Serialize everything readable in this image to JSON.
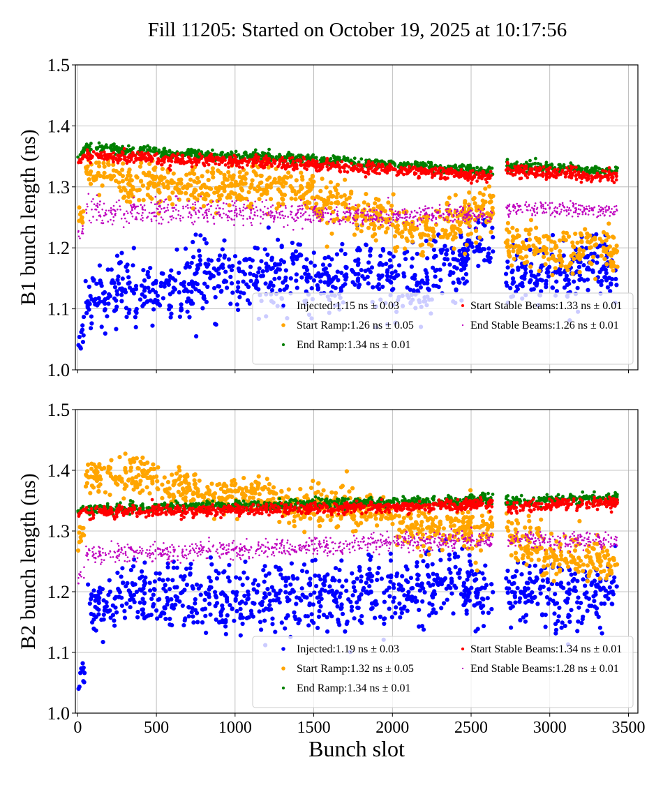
{
  "title": "Fill 11205: Started on October 19, 2025 at 10:17:56",
  "chart_data": [
    {
      "type": "scatter",
      "ylabel": "B1 bunch length (ns)",
      "xlabel": "",
      "xlim": [
        -15,
        3560
      ],
      "ylim": [
        1.0,
        1.5
      ],
      "xticks": [
        0,
        500,
        1000,
        1500,
        2000,
        2500,
        3000,
        3500
      ],
      "xtick_labels_visible": false,
      "yticks": [
        "1.0",
        "1.1",
        "1.2",
        "1.3",
        "1.4",
        "1.5"
      ],
      "grid": true,
      "legend_placement": "lower-right",
      "x_bin_centers": [
        15,
        125,
        375,
        625,
        875,
        1125,
        1375,
        1625,
        1875,
        2125,
        2375,
        2575,
        2825,
        3075,
        3325
      ],
      "series": [
        {
          "name": "Injected",
          "legend": "Injected:1.15 ns ± 0.03",
          "color": "#0000ff",
          "marker": "large",
          "mean": [
            1.04,
            1.12,
            1.13,
            1.14,
            1.15,
            1.15,
            1.15,
            1.15,
            1.15,
            1.14,
            1.17,
            1.2,
            1.15,
            1.16,
            1.17
          ],
          "spread": [
            0.03,
            0.025,
            0.03,
            0.03,
            0.03,
            0.03,
            0.03,
            0.03,
            0.03,
            0.03,
            0.03,
            0.025,
            0.03,
            0.03,
            0.025
          ]
        },
        {
          "name": "Start Ramp",
          "legend": "Start Ramp:1.26 ns ± 0.05",
          "color": "#ffa500",
          "marker": "large",
          "mean": [
            1.24,
            1.32,
            1.31,
            1.3,
            1.3,
            1.3,
            1.3,
            1.27,
            1.25,
            1.23,
            1.24,
            1.26,
            1.2,
            1.19,
            1.2
          ],
          "spread": [
            0.02,
            0.015,
            0.018,
            0.018,
            0.018,
            0.018,
            0.02,
            0.018,
            0.018,
            0.018,
            0.02,
            0.02,
            0.02,
            0.02,
            0.02
          ]
        },
        {
          "name": "End Ramp",
          "legend": "End Ramp:1.34 ns ± 0.01",
          "color": "#008000",
          "marker": "small",
          "mean": [
            1.35,
            1.362,
            1.36,
            1.355,
            1.352,
            1.35,
            1.347,
            1.343,
            1.338,
            1.335,
            1.33,
            1.326,
            1.333,
            1.33,
            1.326
          ],
          "spread": [
            0.004,
            0.004,
            0.004,
            0.004,
            0.004,
            0.004,
            0.004,
            0.004,
            0.004,
            0.004,
            0.004,
            0.004,
            0.004,
            0.004,
            0.004
          ]
        },
        {
          "name": "Start Stable Beams",
          "legend": "Start Stable Beams:1.33 ns ± 0.01",
          "color": "#ff0000",
          "marker": "small",
          "mean": [
            1.34,
            1.35,
            1.348,
            1.344,
            1.342,
            1.341,
            1.338,
            1.334,
            1.33,
            1.327,
            1.322,
            1.318,
            1.326,
            1.322,
            1.318
          ],
          "spread": [
            0.005,
            0.005,
            0.005,
            0.005,
            0.005,
            0.005,
            0.005,
            0.005,
            0.005,
            0.005,
            0.005,
            0.005,
            0.005,
            0.005,
            0.005
          ]
        },
        {
          "name": "End Stable Beams",
          "legend": "End Stable Beams:1.26 ns ± 0.01",
          "color": "#bf00bf",
          "marker": "tiny",
          "mean": [
            1.22,
            1.26,
            1.26,
            1.26,
            1.26,
            1.256,
            1.255,
            1.253,
            1.252,
            1.253,
            1.255,
            1.25,
            1.264,
            1.263,
            1.262
          ],
          "spread": [
            0.01,
            0.012,
            0.01,
            0.01,
            0.01,
            0.01,
            0.01,
            0.01,
            0.008,
            0.008,
            0.008,
            0.008,
            0.006,
            0.006,
            0.006
          ]
        }
      ]
    },
    {
      "type": "scatter",
      "ylabel": "B2 bunch length (ns)",
      "xlabel": "Bunch slot",
      "xlim": [
        -15,
        3560
      ],
      "ylim": [
        1.0,
        1.5
      ],
      "xticks": [
        0,
        500,
        1000,
        1500,
        2000,
        2500,
        3000,
        3500
      ],
      "xtick_labels_visible": true,
      "yticks": [
        "1.0",
        "1.1",
        "1.2",
        "1.3",
        "1.4",
        "1.5"
      ],
      "grid": true,
      "legend_placement": "lower-right",
      "x_bin_centers": [
        15,
        125,
        375,
        625,
        875,
        1125,
        1375,
        1625,
        1875,
        2125,
        2375,
        2575,
        2825,
        3075,
        3325
      ],
      "series": [
        {
          "name": "Injected",
          "legend": "Injected:1.19 ns ± 0.03",
          "color": "#0000ff",
          "marker": "large",
          "mean": [
            1.04,
            1.18,
            1.19,
            1.19,
            1.19,
            1.19,
            1.19,
            1.19,
            1.2,
            1.2,
            1.21,
            1.2,
            1.2,
            1.19,
            1.2
          ],
          "spread": [
            0.03,
            0.025,
            0.03,
            0.03,
            0.03,
            0.03,
            0.03,
            0.03,
            0.03,
            0.03,
            0.03,
            0.03,
            0.03,
            0.03,
            0.03
          ]
        },
        {
          "name": "Start Ramp",
          "legend": "Start Ramp:1.32 ns ± 0.05",
          "color": "#ffa500",
          "marker": "large",
          "mean": [
            1.29,
            1.39,
            1.39,
            1.37,
            1.36,
            1.36,
            1.34,
            1.34,
            1.33,
            1.31,
            1.31,
            1.3,
            1.28,
            1.26,
            1.25
          ],
          "spread": [
            0.02,
            0.015,
            0.018,
            0.018,
            0.016,
            0.016,
            0.016,
            0.016,
            0.016,
            0.018,
            0.018,
            0.02,
            0.02,
            0.02,
            0.02
          ]
        },
        {
          "name": "End Ramp",
          "legend": "End Ramp:1.34 ns ± 0.01",
          "color": "#008000",
          "marker": "small",
          "mean": [
            1.33,
            1.336,
            1.338,
            1.34,
            1.342,
            1.343,
            1.344,
            1.345,
            1.347,
            1.348,
            1.35,
            1.352,
            1.348,
            1.352,
            1.354
          ],
          "spread": [
            0.004,
            0.004,
            0.004,
            0.004,
            0.004,
            0.004,
            0.004,
            0.004,
            0.004,
            0.004,
            0.004,
            0.004,
            0.004,
            0.004,
            0.004
          ]
        },
        {
          "name": "Start Stable Beams",
          "legend": "Start Stable Beams:1.34 ns ± 0.01",
          "color": "#ff0000",
          "marker": "small",
          "mean": [
            1.325,
            1.33,
            1.332,
            1.333,
            1.334,
            1.335,
            1.336,
            1.337,
            1.339,
            1.34,
            1.343,
            1.345,
            1.34,
            1.344,
            1.346
          ],
          "spread": [
            0.005,
            0.005,
            0.005,
            0.005,
            0.005,
            0.005,
            0.005,
            0.005,
            0.005,
            0.005,
            0.005,
            0.005,
            0.005,
            0.005,
            0.005
          ]
        },
        {
          "name": "End Stable Beams",
          "legend": "End Stable Beams:1.28 ns ± 0.01",
          "color": "#bf00bf",
          "marker": "tiny",
          "mean": [
            1.22,
            1.262,
            1.265,
            1.265,
            1.268,
            1.27,
            1.273,
            1.276,
            1.28,
            1.283,
            1.285,
            1.285,
            1.285,
            1.285,
            1.285
          ],
          "spread": [
            0.01,
            0.008,
            0.008,
            0.008,
            0.008,
            0.008,
            0.008,
            0.008,
            0.008,
            0.008,
            0.008,
            0.008,
            0.008,
            0.008,
            0.008
          ]
        }
      ]
    }
  ]
}
